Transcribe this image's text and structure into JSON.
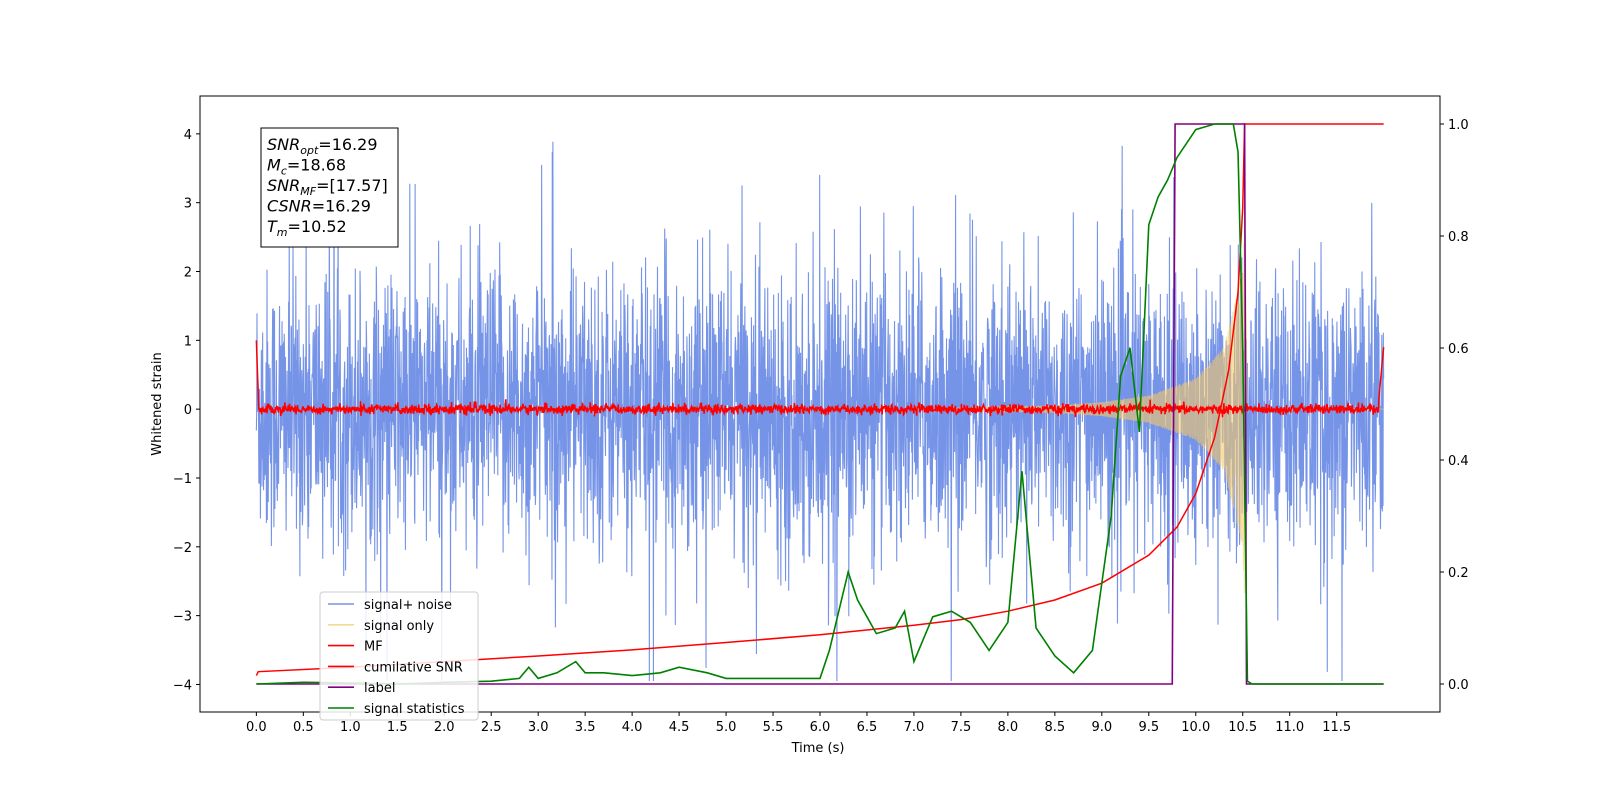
{
  "chart_data": {
    "type": "line",
    "title": "",
    "xlabel": "Time (s)",
    "ylabel": "Whitened strain",
    "xlim": [
      -0.6,
      12.6
    ],
    "ylim": [
      -4.4,
      4.55
    ],
    "y2lim": [
      -0.05,
      1.05
    ],
    "x_ticks": [
      0.0,
      0.5,
      1.0,
      1.5,
      2.0,
      2.5,
      3.0,
      3.5,
      4.0,
      4.5,
      5.0,
      5.5,
      6.0,
      6.5,
      7.0,
      7.5,
      8.0,
      8.5,
      9.0,
      9.5,
      10.0,
      10.5,
      11.0,
      11.5
    ],
    "x_tick_labels": [
      "0.0",
      "0.5",
      "1.0",
      "1.5",
      "2.0",
      "2.5",
      "3.0",
      "3.5",
      "4.0",
      "4.5",
      "5.0",
      "5.5",
      "6.0",
      "6.5",
      "7.0",
      "7.5",
      "8.0",
      "8.5",
      "9.0",
      "9.5",
      "10.0",
      "10.5",
      "11.0",
      "11.5"
    ],
    "y_ticks": [
      -4,
      -3,
      -2,
      -1,
      0,
      1,
      2,
      3,
      4
    ],
    "y_tick_labels": [
      "−4",
      "−3",
      "−2",
      "−1",
      "0",
      "1",
      "2",
      "3",
      "4"
    ],
    "y2_ticks": [
      0.0,
      0.2,
      0.4,
      0.6,
      0.8,
      1.0
    ],
    "y2_tick_labels": [
      "0.0",
      "0.2",
      "0.4",
      "0.6",
      "0.8",
      "1.0"
    ],
    "grid": false,
    "legend_position": "lower-left",
    "colors": {
      "signal_noise": "#6f8ee6",
      "signal_only": "#f5c96a",
      "mf": "#ff0000",
      "cumulative_snr": "#ff0000",
      "label": "#800080",
      "signal_statistics": "#008000"
    },
    "series": [
      {
        "name": "signal+ noise",
        "axis": "left",
        "note_values": "dense noise band spanning roughly -3 to +3 from t=0 to t=12",
        "envelope": {
          "x": [
            0,
            12
          ],
          "upper": [
            3.0,
            3.0
          ],
          "lower": [
            -3.2,
            -3.2
          ]
        }
      },
      {
        "name": "signal only",
        "axis": "left",
        "chirp": {
          "x": [
            8.5,
            9.0,
            9.5,
            10.0,
            10.3,
            10.5,
            10.52
          ],
          "amplitude": [
            0.05,
            0.1,
            0.2,
            0.45,
            0.9,
            2.0,
            3.0
          ]
        }
      },
      {
        "name": "MF",
        "axis": "left",
        "x": [
          0.0,
          0.02,
          0.5,
          1.0,
          2.0,
          4.0,
          6.0,
          8.0,
          10.0,
          11.95,
          12.0
        ],
        "y": [
          1.0,
          0.05,
          0.02,
          0.0,
          0.0,
          0.0,
          0.0,
          0.0,
          0.0,
          0.0,
          0.9
        ]
      },
      {
        "name": "cumilative SNR",
        "axis": "right",
        "x": [
          0.0,
          0.02,
          1.0,
          2.0,
          3.0,
          4.0,
          5.0,
          6.0,
          7.0,
          7.5,
          8.0,
          8.5,
          9.0,
          9.5,
          9.8,
          10.0,
          10.2,
          10.35,
          10.45,
          10.5,
          10.52,
          10.55,
          11.0,
          12.0
        ],
        "y": [
          0.015,
          0.022,
          0.03,
          0.04,
          0.05,
          0.061,
          0.074,
          0.088,
          0.105,
          0.115,
          0.13,
          0.15,
          0.18,
          0.23,
          0.28,
          0.34,
          0.44,
          0.56,
          0.7,
          0.85,
          1.0,
          1.0,
          1.0,
          1.0
        ]
      },
      {
        "name": "label",
        "axis": "right",
        "x": [
          0.0,
          9.75,
          9.78,
          10.52,
          10.54,
          12.0
        ],
        "y": [
          0.0,
          0.0,
          1.0,
          1.0,
          0.0,
          0.0
        ]
      },
      {
        "name": "signal statistics",
        "axis": "right",
        "x": [
          0.0,
          0.5,
          1.0,
          1.5,
          2.0,
          2.5,
          2.8,
          2.9,
          3.0,
          3.2,
          3.4,
          3.5,
          3.7,
          4.0,
          4.3,
          4.5,
          4.8,
          5.0,
          5.5,
          6.0,
          6.1,
          6.3,
          6.4,
          6.5,
          6.6,
          6.8,
          6.9,
          7.0,
          7.2,
          7.4,
          7.6,
          7.8,
          8.0,
          8.15,
          8.3,
          8.5,
          8.7,
          8.9,
          9.0,
          9.1,
          9.2,
          9.3,
          9.4,
          9.5,
          9.6,
          9.7,
          9.8,
          10.0,
          10.2,
          10.4,
          10.45,
          10.5,
          10.55,
          10.6,
          11.0,
          11.5,
          12.0
        ],
        "y": [
          0.0,
          0.003,
          0.002,
          0.0,
          0.003,
          0.005,
          0.01,
          0.03,
          0.01,
          0.02,
          0.04,
          0.02,
          0.02,
          0.015,
          0.02,
          0.03,
          0.02,
          0.01,
          0.01,
          0.01,
          0.06,
          0.2,
          0.15,
          0.12,
          0.09,
          0.1,
          0.13,
          0.04,
          0.12,
          0.13,
          0.11,
          0.06,
          0.11,
          0.38,
          0.1,
          0.05,
          0.02,
          0.06,
          0.18,
          0.3,
          0.55,
          0.6,
          0.45,
          0.82,
          0.87,
          0.9,
          0.94,
          0.99,
          1.0,
          1.0,
          0.95,
          0.6,
          0.005,
          0.0,
          0.0,
          0.0,
          0.0
        ]
      }
    ],
    "info_box": [
      {
        "base": "SNR",
        "sub": "opt",
        "value": "=16.29"
      },
      {
        "base": "M",
        "sub": "c",
        "value": "=18.68"
      },
      {
        "base": "SNR",
        "sub": "MF",
        "value": "=[17.57]"
      },
      {
        "base": "CSNR",
        "sub": "",
        "value": "=16.29"
      },
      {
        "base": "T",
        "sub": "m",
        "value": "=10.52"
      }
    ]
  }
}
